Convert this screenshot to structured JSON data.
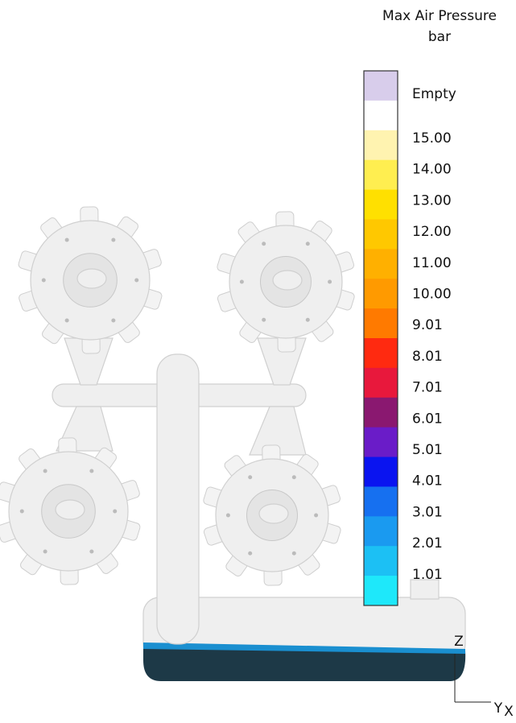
{
  "legend": {
    "title": "Max Air Pressure",
    "unit": "bar",
    "labels": [
      "Empty",
      "15.00",
      "14.00",
      "13.00",
      "12.00",
      "11.00",
      "10.00",
      "9.01",
      "8.01",
      "7.01",
      "6.01",
      "5.01",
      "4.01",
      "3.01",
      "2.01",
      "1.01"
    ],
    "colors": [
      "#d8cdeb",
      "#ffffff",
      "#fff3b0",
      "#ffee50",
      "#ffe000",
      "#ffc800",
      "#ffb000",
      "#ff9a00",
      "#ff7a00",
      "#ff2a10",
      "#e8183c",
      "#8a1870",
      "#6a1cc8",
      "#0a14f0",
      "#1670f0",
      "#1a9af0",
      "#1cc0f4",
      "#1ee8fa"
    ]
  },
  "axes": {
    "z": "Z",
    "y": "Y",
    "x": "X"
  }
}
